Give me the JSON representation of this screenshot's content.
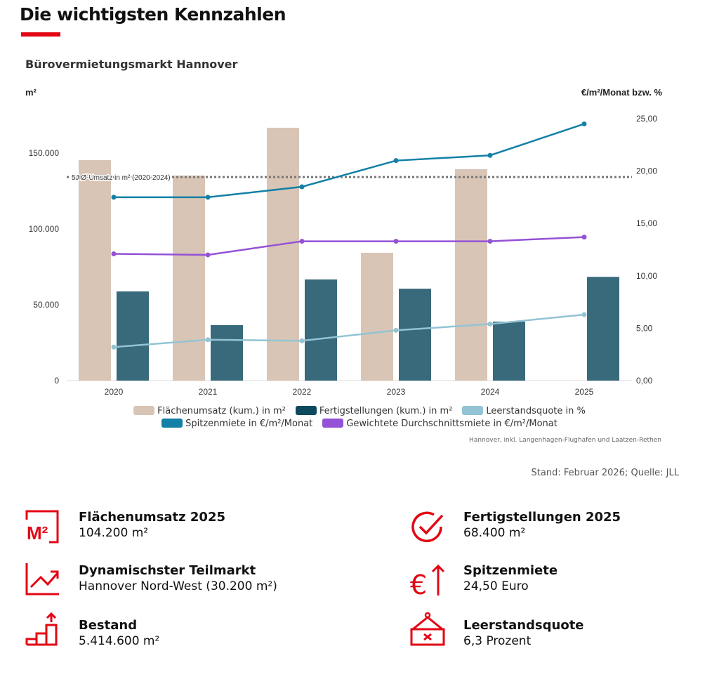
{
  "header": {
    "title": "Die wichtigsten Kennzahlen",
    "subtitle": "Bürovermietungsmarkt Hannover"
  },
  "colors": {
    "accent": "#e30613",
    "flaeche": "#d9c5b5",
    "fertig": "#386a7c",
    "fertig_legend": "#0e4a5e",
    "leerstand": "#93c4d3",
    "spitzen": "#1380a6",
    "durchschnitt": "#9452d6"
  },
  "chart_data": {
    "type": "bar",
    "categories": [
      "2020",
      "2021",
      "2022",
      "2023",
      "2024",
      "2025"
    ],
    "left_axis": {
      "label": "m²",
      "ylim": [
        0,
        175000
      ],
      "ticks": [
        0,
        50000,
        100000,
        150000
      ],
      "tick_labels": [
        "0",
        "50.000",
        "100.000",
        "150.000"
      ]
    },
    "right_axis": {
      "label": "€/m²/Monat bzw. %",
      "ylim": [
        0,
        25.5
      ],
      "ticks": [
        0,
        5,
        10,
        15,
        20,
        25
      ],
      "tick_labels": [
        "0,00",
        "5,00",
        "10,00",
        "15,00",
        "20,00",
        "25,00"
      ]
    },
    "series": [
      {
        "name": "Flächenumsatz (kum.) in m²",
        "type": "bar",
        "axis": "left",
        "color": "#d9c5b5",
        "values": [
          145400,
          135200,
          166700,
          84300,
          139400,
          null
        ]
      },
      {
        "name": "Fertigstellungen (kum.) in m²",
        "type": "bar",
        "axis": "left",
        "color": "#386a7c",
        "values": [
          58800,
          36600,
          66700,
          60600,
          38900,
          68400
        ]
      },
      {
        "name": "Leerstandsquote in %",
        "type": "line",
        "axis": "right",
        "color": "#93c4d3",
        "values": [
          3.2,
          3.9,
          3.8,
          4.8,
          5.4,
          6.3
        ]
      },
      {
        "name": "Spitzenmiete in €/m²/Monat",
        "type": "line",
        "axis": "right",
        "color": "#1380a6",
        "values": [
          17.5,
          17.5,
          18.5,
          21.0,
          21.5,
          24.5
        ]
      },
      {
        "name": "Gewichtete Durchschnittsmiete in €/m²/Monat",
        "type": "line",
        "axis": "right",
        "color": "#9452d6",
        "values": [
          12.1,
          12.0,
          13.3,
          13.3,
          13.3,
          13.7
        ]
      }
    ],
    "reference_line": {
      "label": "5J Ø-Umsatz in m² (2020-2024)",
      "value": 134200,
      "axis": "left"
    },
    "legend": "bottom",
    "grid": false
  },
  "chart_note": "Hannover, inkl. Langenhagen-Flughafen und Laatzen-Rethen",
  "source": "Stand: Februar 2026; Quelle: JLL",
  "kpis": [
    {
      "icon": "m2-icon",
      "label": "Flächenumsatz 2025",
      "value": "104.200 m²"
    },
    {
      "icon": "check-icon",
      "label": "Fertigstellungen 2025",
      "value": "68.400 m²"
    },
    {
      "icon": "trend-chart-icon",
      "label": "Dynamischster Teilmarkt",
      "value": "Hannover Nord-West (30.200 m²)"
    },
    {
      "icon": "euro-up-icon",
      "label": "Spitzenmiete",
      "value": "24,50 Euro"
    },
    {
      "icon": "stairs-up-icon",
      "label": "Bestand",
      "value": "5.414.600 m²"
    },
    {
      "icon": "vacant-sign-icon",
      "label": "Leerstandsquote",
      "value": "6,3 Prozent"
    }
  ]
}
